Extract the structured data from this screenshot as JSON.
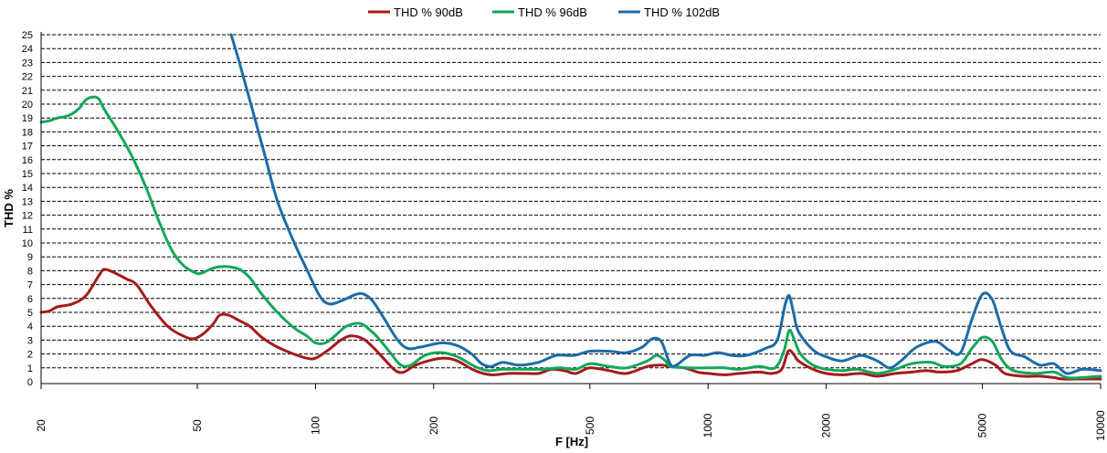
{
  "chart_data": {
    "type": "line",
    "xlabel": "F [Hz]",
    "ylabel": "THD %",
    "x_scale": "log",
    "xlim": [
      20,
      10000
    ],
    "ylim": [
      0,
      25
    ],
    "grid": true,
    "legend_position": "top",
    "x_ticks": [
      "20",
      "50",
      "100",
      "200",
      "500",
      "1000",
      "2000",
      "5000",
      "10000"
    ],
    "y_ticks": [
      "0",
      "1",
      "2",
      "3",
      "4",
      "5",
      "6",
      "7",
      "8",
      "9",
      "10",
      "11",
      "12",
      "13",
      "14",
      "15",
      "16",
      "17",
      "18",
      "19",
      "20",
      "21",
      "22",
      "23",
      "24",
      "25"
    ],
    "series": [
      {
        "name": "THD % 90dB",
        "color": "#a5191b",
        "points": [
          [
            20,
            5.0
          ],
          [
            21,
            5.1
          ],
          [
            22,
            5.4
          ],
          [
            24,
            5.6
          ],
          [
            26,
            6.2
          ],
          [
            28,
            7.6
          ],
          [
            29,
            8.1
          ],
          [
            31,
            7.8
          ],
          [
            33,
            7.4
          ],
          [
            35,
            7.0
          ],
          [
            38,
            5.5
          ],
          [
            42,
            4.0
          ],
          [
            46,
            3.3
          ],
          [
            49,
            3.1
          ],
          [
            52,
            3.5
          ],
          [
            55,
            4.2
          ],
          [
            57,
            4.8
          ],
          [
            60,
            4.8
          ],
          [
            64,
            4.4
          ],
          [
            68,
            4.0
          ],
          [
            73,
            3.2
          ],
          [
            80,
            2.5
          ],
          [
            88,
            2.0
          ],
          [
            95,
            1.7
          ],
          [
            100,
            1.7
          ],
          [
            108,
            2.3
          ],
          [
            116,
            3.0
          ],
          [
            123,
            3.3
          ],
          [
            132,
            3.1
          ],
          [
            140,
            2.5
          ],
          [
            150,
            1.6
          ],
          [
            160,
            0.8
          ],
          [
            168,
            0.7
          ],
          [
            180,
            1.2
          ],
          [
            200,
            1.6
          ],
          [
            215,
            1.7
          ],
          [
            230,
            1.5
          ],
          [
            255,
            0.8
          ],
          [
            280,
            0.5
          ],
          [
            310,
            0.6
          ],
          [
            340,
            0.6
          ],
          [
            370,
            0.6
          ],
          [
            400,
            0.9
          ],
          [
            430,
            0.8
          ],
          [
            460,
            0.6
          ],
          [
            500,
            1.0
          ],
          [
            560,
            0.8
          ],
          [
            620,
            0.6
          ],
          [
            700,
            1.1
          ],
          [
            760,
            1.2
          ],
          [
            800,
            1.1
          ],
          [
            870,
            1.0
          ],
          [
            940,
            0.7
          ],
          [
            1000,
            0.6
          ],
          [
            1100,
            0.5
          ],
          [
            1200,
            0.6
          ],
          [
            1350,
            0.7
          ],
          [
            1450,
            0.6
          ],
          [
            1540,
            0.9
          ],
          [
            1600,
            2.2
          ],
          [
            1650,
            2.0
          ],
          [
            1700,
            1.5
          ],
          [
            1850,
            0.9
          ],
          [
            2000,
            0.6
          ],
          [
            2200,
            0.5
          ],
          [
            2450,
            0.6
          ],
          [
            2700,
            0.4
          ],
          [
            3000,
            0.6
          ],
          [
            3300,
            0.7
          ],
          [
            3600,
            0.8
          ],
          [
            3900,
            0.7
          ],
          [
            4300,
            0.8
          ],
          [
            4700,
            1.3
          ],
          [
            5000,
            1.6
          ],
          [
            5400,
            1.2
          ],
          [
            5700,
            0.6
          ],
          [
            6300,
            0.4
          ],
          [
            7000,
            0.4
          ],
          [
            7600,
            0.3
          ],
          [
            8000,
            0.2
          ],
          [
            9000,
            0.2
          ],
          [
            10000,
            0.2
          ]
        ]
      },
      {
        "name": "THD % 96dB",
        "color": "#12a65a",
        "points": [
          [
            20,
            18.7
          ],
          [
            21,
            18.8
          ],
          [
            22,
            19.0
          ],
          [
            23,
            19.1
          ],
          [
            24,
            19.3
          ],
          [
            25,
            19.7
          ],
          [
            26,
            20.3
          ],
          [
            27,
            20.5
          ],
          [
            28,
            20.4
          ],
          [
            29,
            19.6
          ],
          [
            31,
            18.3
          ],
          [
            34,
            16.3
          ],
          [
            37,
            14.0
          ],
          [
            40,
            11.5
          ],
          [
            43,
            9.5
          ],
          [
            46,
            8.4
          ],
          [
            49,
            7.9
          ],
          [
            51,
            7.8
          ],
          [
            55,
            8.2
          ],
          [
            59,
            8.3
          ],
          [
            64,
            8.1
          ],
          [
            68,
            7.5
          ],
          [
            73,
            6.3
          ],
          [
            80,
            5.0
          ],
          [
            88,
            3.9
          ],
          [
            95,
            3.3
          ],
          [
            100,
            2.8
          ],
          [
            106,
            2.8
          ],
          [
            112,
            3.3
          ],
          [
            120,
            4.0
          ],
          [
            130,
            4.2
          ],
          [
            138,
            3.7
          ],
          [
            145,
            3.1
          ],
          [
            155,
            2.1
          ],
          [
            165,
            1.2
          ],
          [
            175,
            1.2
          ],
          [
            190,
            1.9
          ],
          [
            210,
            2.1
          ],
          [
            230,
            1.8
          ],
          [
            255,
            1.1
          ],
          [
            275,
            0.8
          ],
          [
            300,
            0.9
          ],
          [
            340,
            0.9
          ],
          [
            380,
            0.9
          ],
          [
            420,
            1.0
          ],
          [
            460,
            0.9
          ],
          [
            500,
            1.3
          ],
          [
            560,
            1.1
          ],
          [
            620,
            1.0
          ],
          [
            700,
            1.5
          ],
          [
            740,
            1.9
          ],
          [
            780,
            1.5
          ],
          [
            800,
            1.1
          ],
          [
            900,
            1.0
          ],
          [
            1000,
            1.0
          ],
          [
            1100,
            1.0
          ],
          [
            1200,
            0.9
          ],
          [
            1350,
            1.1
          ],
          [
            1480,
            1.0
          ],
          [
            1560,
            2.2
          ],
          [
            1610,
            3.7
          ],
          [
            1660,
            3.0
          ],
          [
            1720,
            2.0
          ],
          [
            1850,
            1.2
          ],
          [
            2000,
            0.9
          ],
          [
            2200,
            0.8
          ],
          [
            2400,
            0.9
          ],
          [
            2700,
            0.6
          ],
          [
            3000,
            0.9
          ],
          [
            3300,
            1.3
          ],
          [
            3700,
            1.4
          ],
          [
            4000,
            1.1
          ],
          [
            4400,
            1.3
          ],
          [
            4700,
            2.4
          ],
          [
            5000,
            3.2
          ],
          [
            5300,
            2.9
          ],
          [
            5600,
            1.6
          ],
          [
            6000,
            0.8
          ],
          [
            6800,
            0.6
          ],
          [
            7600,
            0.7
          ],
          [
            8200,
            0.3
          ],
          [
            9000,
            0.3
          ],
          [
            10000,
            0.4
          ]
        ]
      },
      {
        "name": "THD % 102dB",
        "color": "#1c6ba9",
        "points": [
          [
            61,
            25.0
          ],
          [
            64,
            23.0
          ],
          [
            68,
            20.3
          ],
          [
            74,
            16.5
          ],
          [
            80,
            13.0
          ],
          [
            88,
            10.1
          ],
          [
            95,
            8.1
          ],
          [
            101,
            6.5
          ],
          [
            105,
            5.8
          ],
          [
            110,
            5.6
          ],
          [
            118,
            5.9
          ],
          [
            127,
            6.3
          ],
          [
            133,
            6.3
          ],
          [
            140,
            5.8
          ],
          [
            150,
            4.5
          ],
          [
            162,
            3.0
          ],
          [
            172,
            2.4
          ],
          [
            185,
            2.5
          ],
          [
            210,
            2.8
          ],
          [
            230,
            2.6
          ],
          [
            250,
            2.0
          ],
          [
            265,
            1.3
          ],
          [
            280,
            1.1
          ],
          [
            300,
            1.4
          ],
          [
            330,
            1.2
          ],
          [
            370,
            1.4
          ],
          [
            410,
            1.9
          ],
          [
            455,
            1.9
          ],
          [
            500,
            2.2
          ],
          [
            560,
            2.2
          ],
          [
            620,
            2.1
          ],
          [
            680,
            2.5
          ],
          [
            720,
            3.1
          ],
          [
            760,
            2.9
          ],
          [
            800,
            1.3
          ],
          [
            830,
            1.2
          ],
          [
            900,
            1.9
          ],
          [
            980,
            1.9
          ],
          [
            1060,
            2.1
          ],
          [
            1150,
            1.9
          ],
          [
            1250,
            1.9
          ],
          [
            1400,
            2.4
          ],
          [
            1500,
            3.0
          ],
          [
            1570,
            5.5
          ],
          [
            1610,
            6.2
          ],
          [
            1650,
            5.0
          ],
          [
            1700,
            3.6
          ],
          [
            1850,
            2.3
          ],
          [
            2000,
            1.8
          ],
          [
            2200,
            1.5
          ],
          [
            2450,
            1.9
          ],
          [
            2700,
            1.5
          ],
          [
            2900,
            1.0
          ],
          [
            3100,
            1.5
          ],
          [
            3400,
            2.5
          ],
          [
            3800,
            2.9
          ],
          [
            4100,
            2.3
          ],
          [
            4400,
            2.1
          ],
          [
            4700,
            4.5
          ],
          [
            5000,
            6.3
          ],
          [
            5300,
            5.9
          ],
          [
            5600,
            3.8
          ],
          [
            5900,
            2.2
          ],
          [
            6400,
            1.8
          ],
          [
            7000,
            1.2
          ],
          [
            7600,
            1.3
          ],
          [
            8200,
            0.6
          ],
          [
            9000,
            0.9
          ],
          [
            10000,
            0.8
          ]
        ]
      }
    ]
  }
}
